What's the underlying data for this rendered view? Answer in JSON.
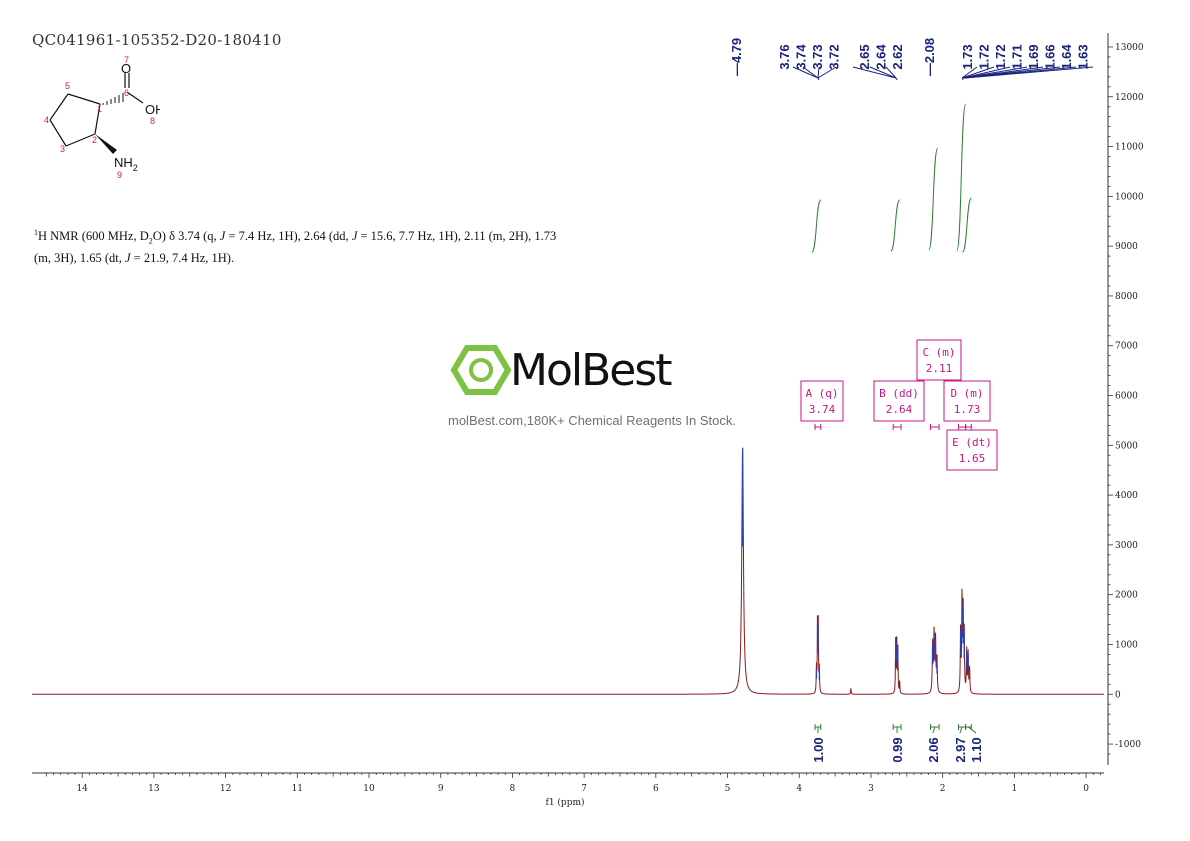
{
  "header": {
    "sample_id": "QC041961-105352-D20-180410"
  },
  "molecule": {
    "atoms": [
      {
        "label": "1"
      },
      {
        "label": "2"
      },
      {
        "label": "3"
      },
      {
        "label": "4"
      },
      {
        "label": "5"
      },
      {
        "label": "6"
      },
      {
        "label": "7"
      },
      {
        "label": "8"
      },
      {
        "label": "9"
      }
    ],
    "groups": {
      "oh": "OH",
      "o": "O",
      "nh": "NH",
      "nh_sub": "2"
    }
  },
  "nmr_description": {
    "line1_a": "H NMR (600 MHz, D",
    "sup1": "1",
    "sub2": "2",
    "line1_b": "O) δ 3.74 (q, ",
    "j": "J",
    "line1_c": " = 7.4 Hz, 1H), 2.64 (dd, ",
    "line1_d": " = 15.6, 7.7 Hz, 1H), 2.11 (m, 2H), 1.73",
    "line2_a": "(m, 3H), 1.65 (dt, ",
    "line2_b": " = 21.9, 7.4 Hz, 1H)."
  },
  "watermark": {
    "brand": "MolBest",
    "caption": "molBest.com,180K+ Chemical Reagents In Stock."
  },
  "chart_data": {
    "type": "line",
    "xlabel": "f1 (ppm)",
    "xlim": [
      14.7,
      -0.25
    ],
    "ylim": [
      -1300,
      13200
    ],
    "x_ticks": [
      14,
      13,
      12,
      11,
      10,
      9,
      8,
      7,
      6,
      5,
      4,
      3,
      2,
      1,
      0
    ],
    "y_ticks": [
      -1000,
      0,
      1000,
      2000,
      3000,
      4000,
      5000,
      6000,
      7000,
      8000,
      9000,
      10000,
      11000,
      12000,
      13000
    ],
    "peaks": [
      {
        "ppm": 4.79,
        "height": 4950,
        "width": 0.014
      },
      {
        "ppm": 3.76,
        "height": 520,
        "width": 0.004
      },
      {
        "ppm": 3.745,
        "height": 1500,
        "width": 0.004
      },
      {
        "ppm": 3.735,
        "height": 1350,
        "width": 0.004
      },
      {
        "ppm": 3.72,
        "height": 480,
        "width": 0.004
      },
      {
        "ppm": 3.28,
        "height": 120,
        "width": 0.004
      },
      {
        "ppm": 2.655,
        "height": 1150,
        "width": 0.004
      },
      {
        "ppm": 2.64,
        "height": 1050,
        "width": 0.004
      },
      {
        "ppm": 2.625,
        "height": 900,
        "width": 0.004
      },
      {
        "ppm": 2.6,
        "height": 250,
        "width": 0.004
      },
      {
        "ppm": 2.14,
        "height": 1000,
        "width": 0.006
      },
      {
        "ppm": 2.12,
        "height": 1200,
        "width": 0.006
      },
      {
        "ppm": 2.1,
        "height": 1100,
        "width": 0.006
      },
      {
        "ppm": 2.08,
        "height": 700,
        "width": 0.006
      },
      {
        "ppm": 1.75,
        "height": 1300,
        "width": 0.005
      },
      {
        "ppm": 1.73,
        "height": 1900,
        "width": 0.005
      },
      {
        "ppm": 1.715,
        "height": 1700,
        "width": 0.005
      },
      {
        "ppm": 1.7,
        "height": 1200,
        "width": 0.005
      },
      {
        "ppm": 1.665,
        "height": 850,
        "width": 0.005
      },
      {
        "ppm": 1.645,
        "height": 800,
        "width": 0.005
      },
      {
        "ppm": 1.625,
        "height": 500,
        "width": 0.005
      }
    ],
    "peak_labels": [
      "4.79",
      "3.76",
      "3.74",
      "3.73",
      "3.72",
      "2.65",
      "2.64",
      "2.62",
      "2.08",
      "1.73",
      "1.72",
      "1.72",
      "1.71",
      "1.69",
      "1.66",
      "1.64",
      "1.63"
    ],
    "multiplets": [
      {
        "name": "A (q)",
        "shift": "3.74",
        "range": [
          3.7,
          3.78
        ]
      },
      {
        "name": "B (dd)",
        "shift": "2.64",
        "range": [
          2.58,
          2.69
        ]
      },
      {
        "name": "C (m)",
        "shift": "2.11",
        "range": [
          2.05,
          2.17
        ]
      },
      {
        "name": "D (m)",
        "shift": "1.73",
        "range": [
          1.68,
          1.78
        ]
      },
      {
        "name": "E (dt)",
        "shift": "1.65",
        "range": [
          1.6,
          1.68
        ]
      }
    ],
    "integrals": [
      {
        "value": "1.00",
        "range": [
          3.7,
          3.78
        ]
      },
      {
        "value": "0.99",
        "range": [
          2.58,
          2.69
        ]
      },
      {
        "value": "2.06",
        "range": [
          2.05,
          2.17
        ]
      },
      {
        "value": "2.97",
        "range": [
          1.68,
          1.78
        ]
      },
      {
        "value": "1.10",
        "range": [
          1.6,
          1.68
        ]
      }
    ]
  },
  "colors": {
    "spectrum": "#8b1a1a",
    "peak_label": "#1a237e",
    "integral": "#2e7d32",
    "multiplet_box": "#c71585",
    "logo_green": "#7dc242"
  }
}
